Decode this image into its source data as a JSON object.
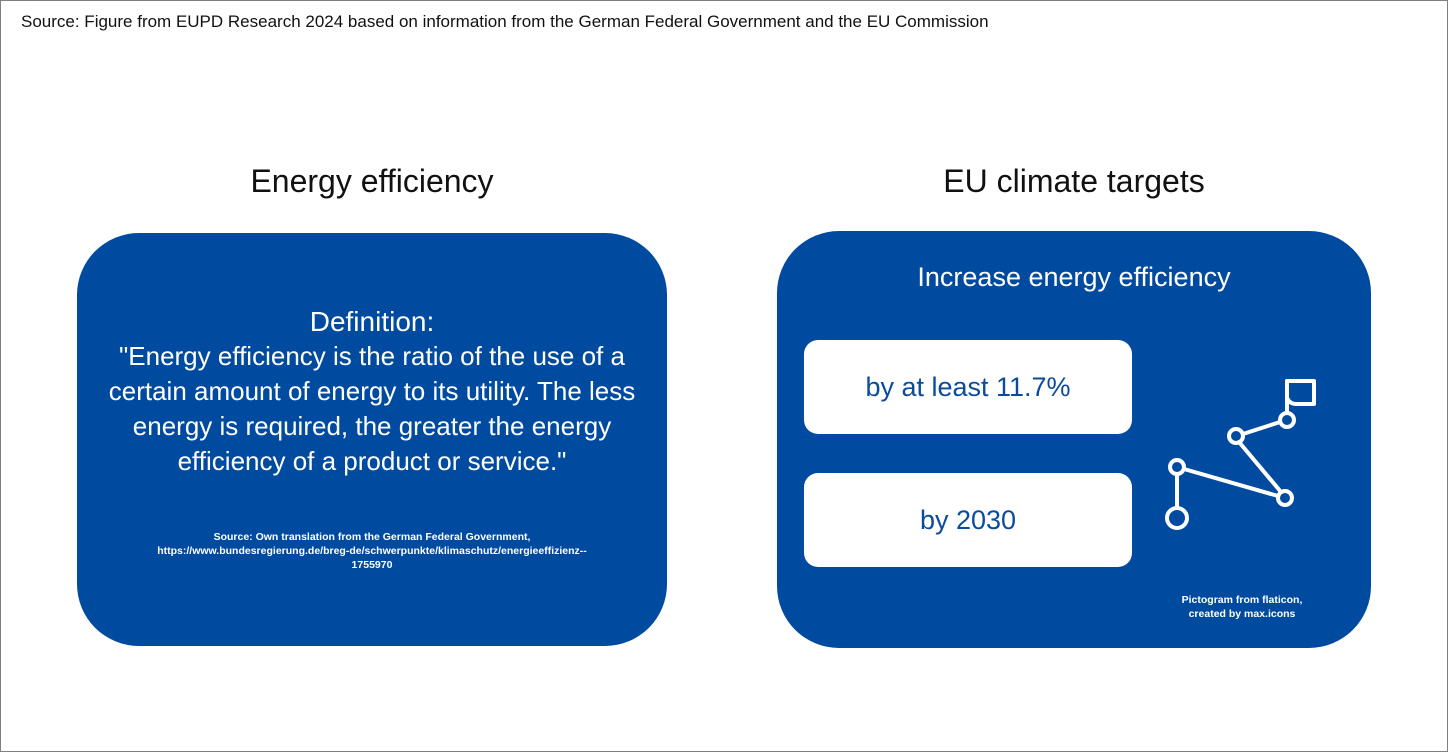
{
  "source_line": "Source: Figure from EUPD Research 2024 based on information from the German Federal Government and the EU Commission",
  "left_panel": {
    "title": "Energy efficiency",
    "definition_heading": "Definition:",
    "definition_text": "\"Energy efficiency is the ratio of the use of a certain amount of energy to its utility. The less energy is required, the greater the energy efficiency of a product or service.\"",
    "source_line_1": "Source: Own translation from the German Federal Government,",
    "source_line_2": "https://www.bundesregierung.de/breg-de/schwerpunkte/klimaschutz/energieeffizienz--",
    "source_line_3": "1755970"
  },
  "right_panel": {
    "title": "EU  climate targets",
    "heading": "Increase energy efficiency",
    "target_1": "by at least 11.7%",
    "target_2": "by 2030",
    "pictogram_icon": "route-flag-icon",
    "credit_line_1": "Pictogram from flaticon,",
    "credit_line_2": "created by max.icons"
  },
  "colors": {
    "card_blue": "#004b9f",
    "box_text_blue": "#0a4b9c",
    "white": "#ffffff",
    "border_gray": "#7f7f7f"
  }
}
